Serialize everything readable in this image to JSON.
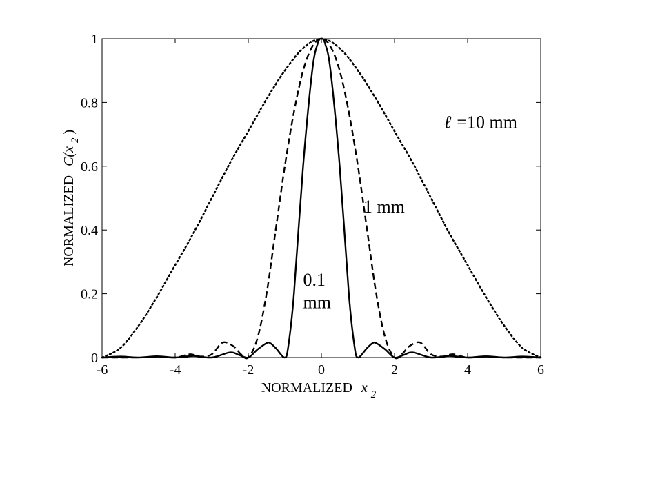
{
  "chart_data": {
    "type": "line",
    "xlim": [
      -6,
      6
    ],
    "ylim": [
      0,
      1
    ],
    "xticks": [
      -6,
      -4,
      -2,
      0,
      2,
      4,
      6
    ],
    "yticks": [
      0,
      0.2,
      0.4,
      0.6,
      0.8,
      1
    ],
    "xtick_labels": [
      "-6",
      "-4",
      "-2",
      "0",
      "2",
      "4",
      "6"
    ],
    "ytick_labels": [
      "0",
      "0.2",
      "0.4",
      "0.6",
      "0.8",
      "1"
    ],
    "grid": false,
    "xlabel": {
      "prefix": "NORMALIZED",
      "var": "x",
      "sub": "2"
    },
    "ylabel": {
      "prefix": "NORMALIZED",
      "fn": "C(x",
      "sub": "2",
      "close": ")"
    },
    "series": [
      {
        "style": "dotted",
        "x": [
          -6,
          -5.5,
          -5,
          -4.5,
          -4,
          -3.5,
          -3,
          -2.5,
          -2,
          -1.5,
          -1,
          -0.5,
          0,
          0.5,
          1,
          1.5,
          2,
          2.5,
          3,
          3.5,
          4,
          4.5,
          5,
          5.5,
          6
        ],
        "y": [
          0.0,
          0.03,
          0.1,
          0.19,
          0.29,
          0.39,
          0.5,
          0.61,
          0.71,
          0.81,
          0.9,
          0.97,
          1.0,
          0.97,
          0.9,
          0.81,
          0.71,
          0.61,
          0.5,
          0.39,
          0.29,
          0.19,
          0.1,
          0.03,
          0.0
        ]
      },
      {
        "style": "dashed",
        "x": [
          -6,
          -5,
          -4.5,
          -4,
          -3.6,
          -3.3,
          -3,
          -2.7,
          -2.4,
          -2.2,
          -2,
          -1.75,
          -1.5,
          -1.25,
          -1,
          -0.75,
          -0.5,
          -0.25,
          0,
          0.25,
          0.5,
          0.75,
          1,
          1.25,
          1.5,
          1.75,
          2,
          2.2,
          2.4,
          2.7,
          3,
          3.3,
          3.6,
          4,
          4.5,
          5,
          6
        ],
        "y": [
          0.0,
          0.0,
          0.003,
          0.0,
          0.01,
          0.003,
          0.01,
          0.047,
          0.035,
          0.01,
          0.0,
          0.06,
          0.2,
          0.4,
          0.6,
          0.77,
          0.9,
          0.975,
          1.0,
          0.975,
          0.9,
          0.77,
          0.6,
          0.4,
          0.2,
          0.06,
          0.0,
          0.01,
          0.035,
          0.047,
          0.01,
          0.003,
          0.01,
          0.0,
          0.003,
          0.0,
          0.0
        ]
      },
      {
        "style": "solid",
        "x": [
          -6,
          -5.5,
          -5,
          -4.5,
          -4,
          -3.5,
          -3,
          -2.5,
          -2.25,
          -2,
          -1.75,
          -1.5,
          -1.4,
          -1.25,
          -1,
          -0.9,
          -0.75,
          -0.5,
          -0.25,
          -0.1,
          0,
          0.1,
          0.25,
          0.5,
          0.75,
          0.9,
          1,
          1.25,
          1.4,
          1.5,
          1.75,
          2,
          2.25,
          2.5,
          3,
          3.5,
          4,
          4.5,
          5,
          5.5,
          6
        ],
        "y": [
          0.0,
          0.003,
          0.0,
          0.004,
          0.0,
          0.005,
          0.0,
          0.016,
          0.008,
          0.0,
          0.025,
          0.045,
          0.045,
          0.03,
          0.0,
          0.04,
          0.2,
          0.6,
          0.9,
          0.985,
          1.0,
          0.985,
          0.9,
          0.6,
          0.2,
          0.04,
          0.0,
          0.03,
          0.045,
          0.045,
          0.025,
          0.0,
          0.008,
          0.016,
          0.0,
          0.005,
          0.0,
          0.004,
          0.0,
          0.003,
          0.0
        ]
      }
    ],
    "annotations": [
      {
        "text": "=10 mm",
        "symbol": "ℓ",
        "x": 3.35,
        "y": 0.72
      },
      {
        "text": "1 mm",
        "x": 1.15,
        "y": 0.455
      },
      {
        "text": "0.1",
        "x": -0.5,
        "y": 0.225
      },
      {
        "text": "mm",
        "x": -0.5,
        "y": 0.155
      }
    ]
  }
}
